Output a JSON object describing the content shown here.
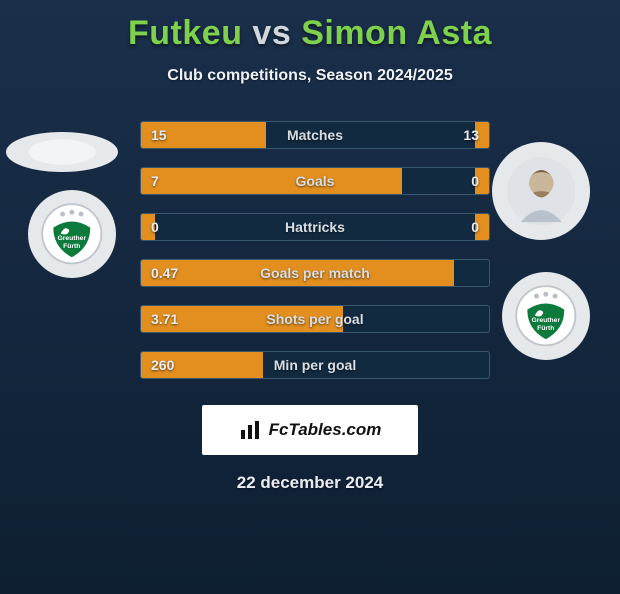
{
  "title": {
    "player1": "Futkeu",
    "vs": "vs",
    "player2": "Simon Asta"
  },
  "subtitle": "Club competitions, Season 2024/2025",
  "colors": {
    "accent": "#7fd14d",
    "bar_fill": "#e28f1f",
    "bar_border": "#3a5770",
    "bg_top": "#1a2f4a",
    "bg_bottom": "#0e1f33",
    "text_light": "#e9edf1"
  },
  "bars": [
    {
      "label": "Matches",
      "left": "15",
      "right": "13",
      "left_pct": 36,
      "right_pct": 4
    },
    {
      "label": "Goals",
      "left": "7",
      "right": "0",
      "left_pct": 75,
      "right_pct": 4
    },
    {
      "label": "Hattricks",
      "left": "0",
      "right": "0",
      "left_pct": 4,
      "right_pct": 4
    },
    {
      "label": "Goals per match",
      "left": "0.47",
      "right": "",
      "left_pct": 90,
      "right_pct": 0
    },
    {
      "label": "Shots per goal",
      "left": "3.71",
      "right": "",
      "left_pct": 58,
      "right_pct": 0
    },
    {
      "label": "Min per goal",
      "left": "260",
      "right": "",
      "left_pct": 35,
      "right_pct": 0
    }
  ],
  "footer": {
    "brand": "FcTables.com",
    "date": "22 december 2024"
  },
  "icons": {
    "player_left": "avatar-placeholder",
    "player_right": "avatar-photo",
    "club": "greuther-fuerth-badge",
    "brand": "bars-icon"
  }
}
